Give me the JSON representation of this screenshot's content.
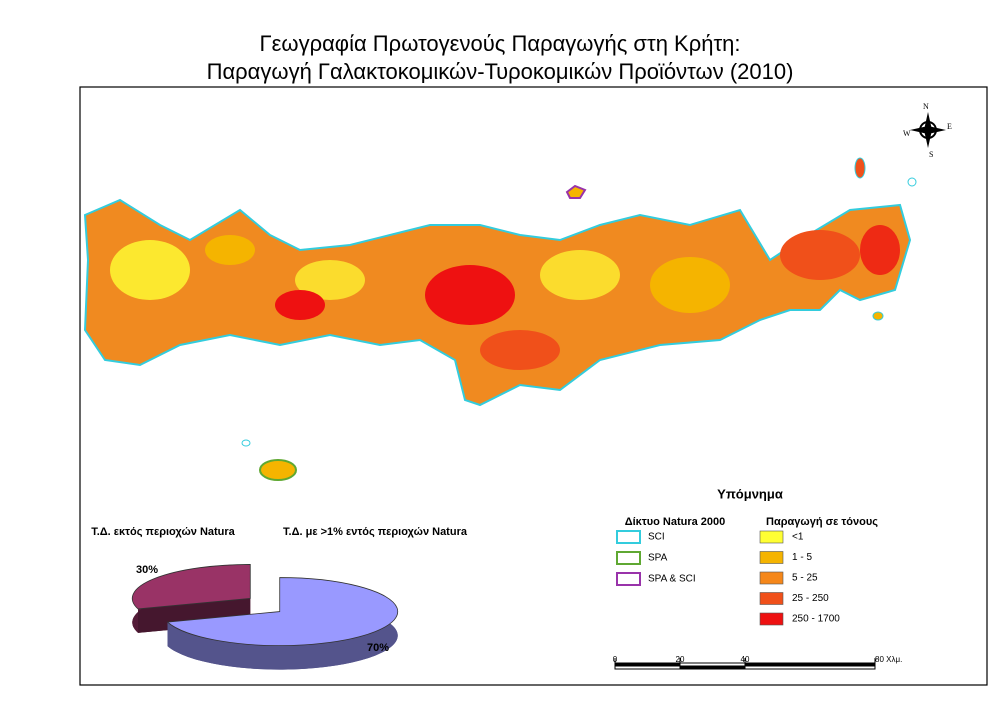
{
  "title": [
    "Γεωγραφία Πρωτογενούς Παραγωγής στη Κρήτη:",
    "Παραγωγή Γαλακτοκομικών-Τυροκομικών Προϊόντων (2010)"
  ],
  "compass": [
    "N",
    "E",
    "S",
    "W"
  ],
  "chart_data": {
    "type": "pie",
    "categories": [
      "Τ.Δ. εκτός περιοχών Natura",
      "Τ.Δ. με >1% εντός περιοχών Natura"
    ],
    "values": [
      30,
      70
    ],
    "value_labels": [
      "30%",
      "70%"
    ],
    "colors": [
      "#993366",
      "#9999ff"
    ]
  },
  "legend": {
    "title": "Υπόμνημα",
    "natura": {
      "title": "Δίκτυο Natura 2000",
      "items": [
        {
          "label": "SCI",
          "color": "#33ccdd"
        },
        {
          "label": "SPA",
          "color": "#5fa832"
        },
        {
          "label": "SPA & SCI",
          "color": "#9933aa"
        }
      ]
    },
    "production": {
      "title": "Παραγωγή σε τόνους",
      "items": [
        {
          "label": "<1",
          "color": "#ffff33"
        },
        {
          "label": "1 - 5",
          "color": "#f5b400"
        },
        {
          "label": "5 - 25",
          "color": "#f5871a"
        },
        {
          "label": "25 - 250",
          "color": "#f0501a"
        },
        {
          "label": "250 - 1700",
          "color": "#ee1111"
        }
      ]
    }
  },
  "scale_bar": {
    "ticks": [
      0,
      20,
      40,
      {
        "value": 80,
        "label": "80 Χλμ."
      }
    ],
    "xlim": [
      0,
      80
    ]
  }
}
